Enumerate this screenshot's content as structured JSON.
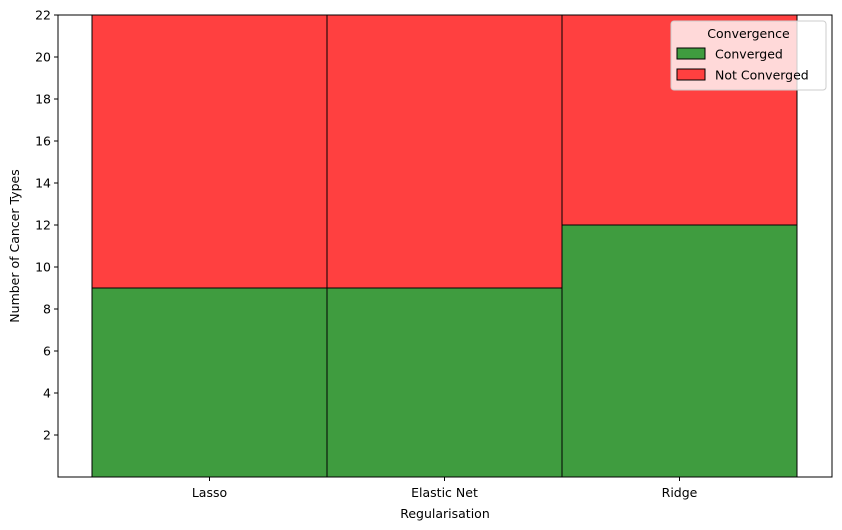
{
  "chart_data": {
    "type": "bar",
    "stacked": true,
    "categories": [
      "Lasso",
      "Elastic Net",
      "Ridge"
    ],
    "series": [
      {
        "name": "Converged",
        "values": [
          9,
          9,
          12
        ],
        "color": "#3f9c3f"
      },
      {
        "name": "Not Converged",
        "values": [
          13,
          13,
          10
        ],
        "color": "#ff4040"
      }
    ],
    "xlabel": "Regularisation",
    "ylabel": "Number of Cancer Types",
    "ylim": [
      0,
      22
    ],
    "yticks": [
      2,
      4,
      6,
      8,
      10,
      12,
      14,
      16,
      18,
      20,
      22
    ],
    "legend": {
      "title": "Convergence",
      "placement": "top-right"
    },
    "grid": false
  }
}
